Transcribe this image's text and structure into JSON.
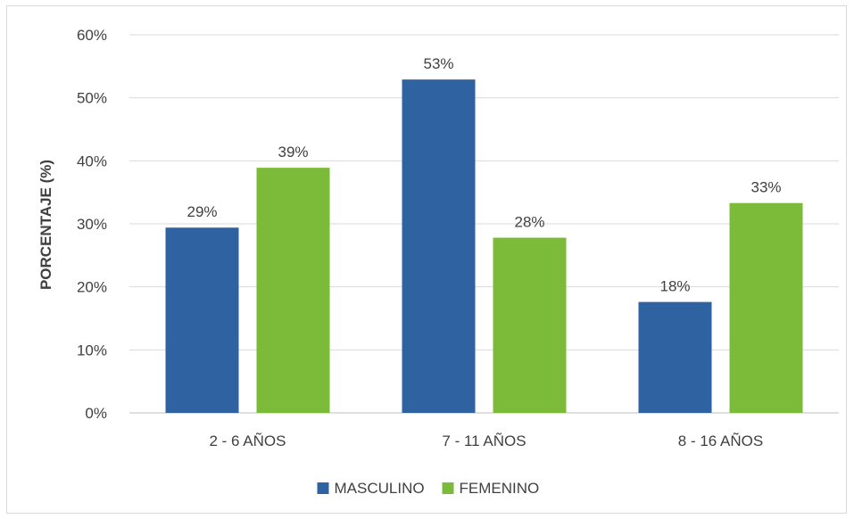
{
  "chart_data": {
    "type": "bar",
    "categories": [
      "2 - 6 AÑOS",
      "7 - 11 AÑOS",
      "8 - 16 AÑOS"
    ],
    "series": [
      {
        "name": "MASCULINO",
        "color": "#2e62a1",
        "values": [
          29.4,
          52.9,
          17.6
        ],
        "labels": [
          "29%",
          "53%",
          "18%"
        ]
      },
      {
        "name": "FEMENINO",
        "color": "#7cbb3a",
        "values": [
          38.9,
          27.8,
          33.3
        ],
        "labels": [
          "39%",
          "28%",
          "33%"
        ]
      }
    ],
    "ylabel": "PORCENTAJE (%)",
    "xlabel": "",
    "ylim": [
      0,
      60
    ],
    "yticks": [
      0,
      10,
      20,
      30,
      40,
      50,
      60
    ],
    "ytick_labels": [
      "0%",
      "10%",
      "20%",
      "30%",
      "40%",
      "50%",
      "60%"
    ],
    "grid": true,
    "legend_position": "bottom"
  }
}
